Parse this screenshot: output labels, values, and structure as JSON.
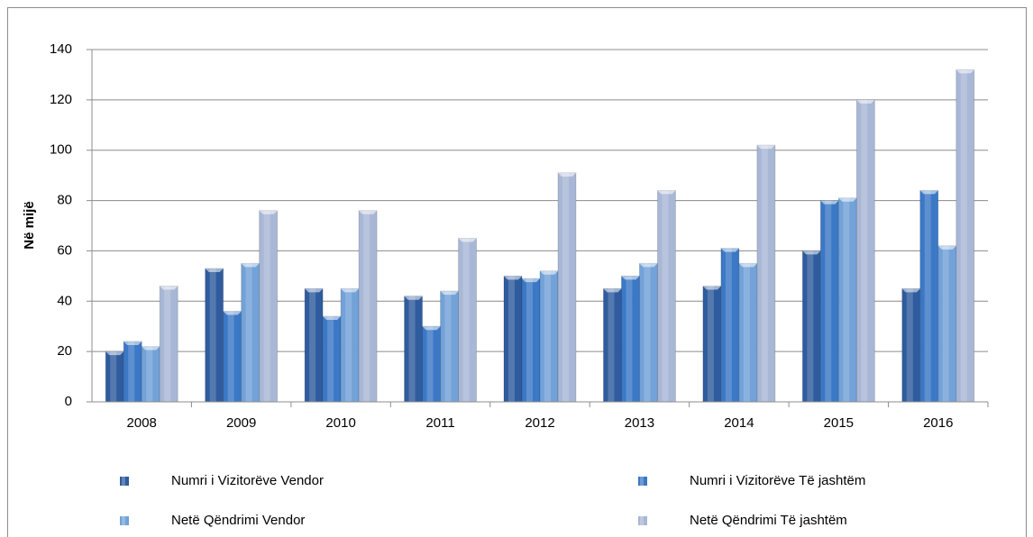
{
  "chart_data": {
    "type": "bar",
    "y_label": "Në mijë",
    "categories": [
      "2008",
      "2009",
      "2010",
      "2011",
      "2012",
      "2013",
      "2014",
      "2015",
      "2016"
    ],
    "series": [
      {
        "name": "Numri i Vizitorëve Vendor",
        "color": "#2f5c9e",
        "values": [
          20,
          53,
          45,
          42,
          50,
          45,
          46,
          60,
          45
        ]
      },
      {
        "name": "Numri i Vizitorëve Të jashtëm",
        "color": "#3b78c6",
        "values": [
          24,
          36,
          34,
          30,
          49,
          50,
          61,
          80,
          84
        ]
      },
      {
        "name": "Netë Qëndrimi Vendor",
        "color": "#72a2d8",
        "values": [
          22,
          55,
          45,
          44,
          52,
          55,
          55,
          81,
          62
        ]
      },
      {
        "name": "Netë Qëndrimi Të jashtëm",
        "color": "#a9b7d6",
        "values": [
          46,
          76,
          76,
          65,
          91,
          84,
          102,
          120,
          132
        ]
      }
    ],
    "ylim": [
      0,
      140
    ],
    "yticks": [
      0,
      20,
      40,
      60,
      80,
      100,
      120,
      140
    ],
    "grid": true,
    "legend": "bottom"
  }
}
